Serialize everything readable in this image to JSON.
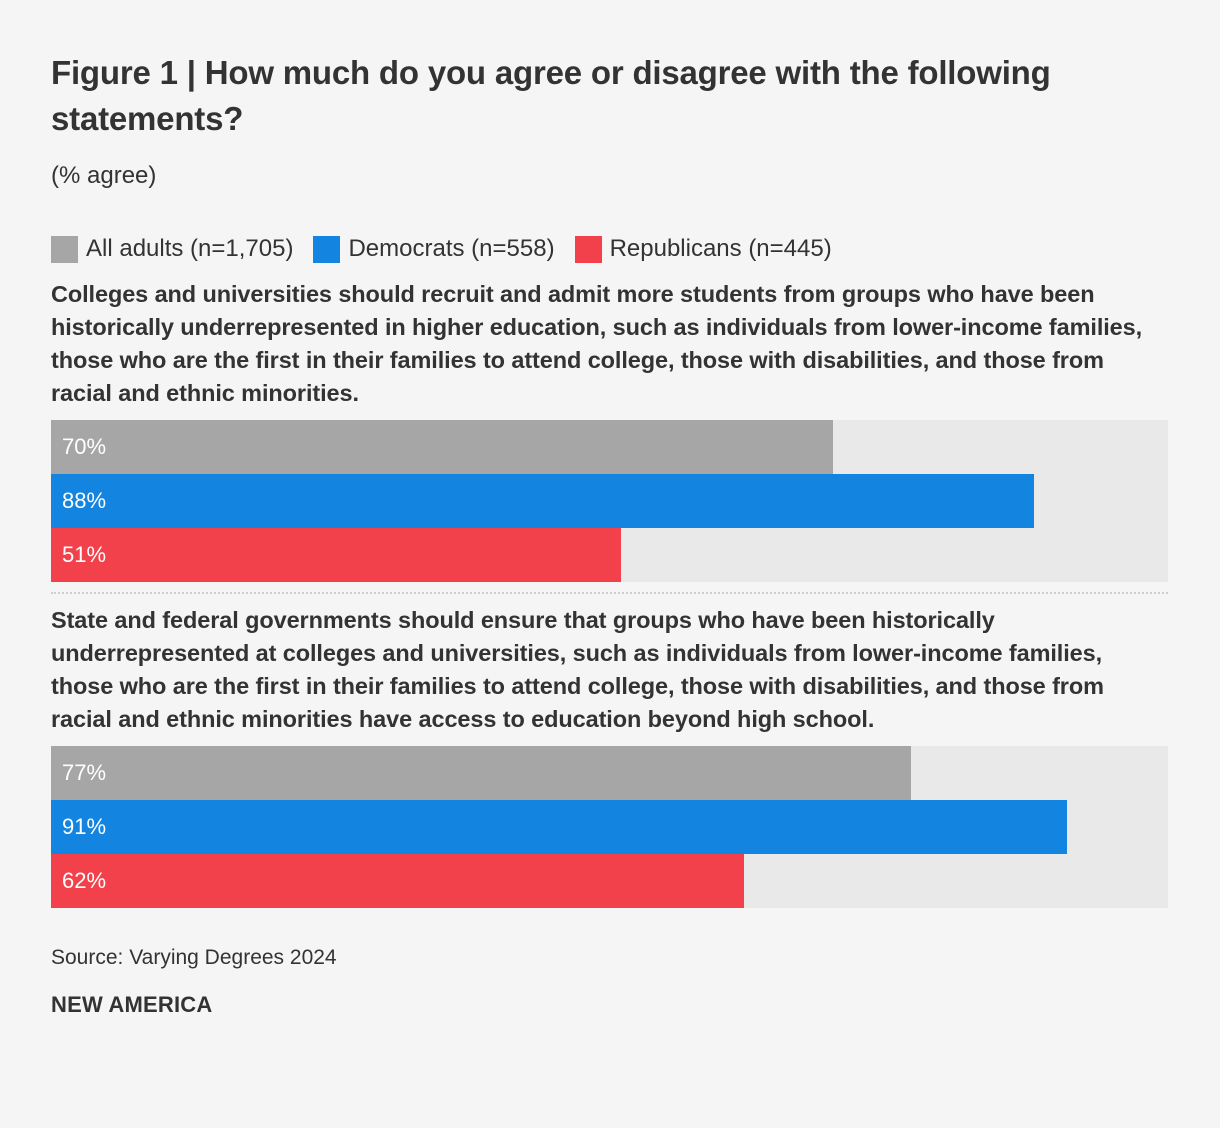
{
  "title": "Figure 1 | How much do you agree or disagree with the following statements?",
  "subtitle": "(% agree)",
  "legend": [
    {
      "label": "All adults (n=1,705)",
      "color": "#a6a6a6"
    },
    {
      "label": "Democrats (n=558)",
      "color": "#1385e0"
    },
    {
      "label": "Republicans (n=445)",
      "color": "#f2414b"
    }
  ],
  "chart_data": {
    "type": "bar",
    "orientation": "horizontal",
    "xlim": [
      0,
      100
    ],
    "unit": "%",
    "groups": [
      {
        "statement": "Colleges and universities should recruit and admit more students from groups who have been historically underrepresented in higher education, such as individuals from lower-income families, those who are the first in their families to attend college, those with disabilities, and those from racial and ethnic minorities.",
        "values": [
          70,
          88,
          51
        ],
        "labels": [
          "70%",
          "88%",
          "51%"
        ]
      },
      {
        "statement": "State and federal governments should ensure that groups who have been historically underrepresented at colleges and universities, such as individuals from lower-income families, those who are the first in their families to attend college, those with disabilities, and those from racial and ethnic minorities have access to education beyond high school.",
        "values": [
          77,
          91,
          62
        ],
        "labels": [
          "77%",
          "91%",
          "62%"
        ]
      }
    ]
  },
  "source": "Source: Varying Degrees 2024",
  "brand": "NEW AMERICA"
}
